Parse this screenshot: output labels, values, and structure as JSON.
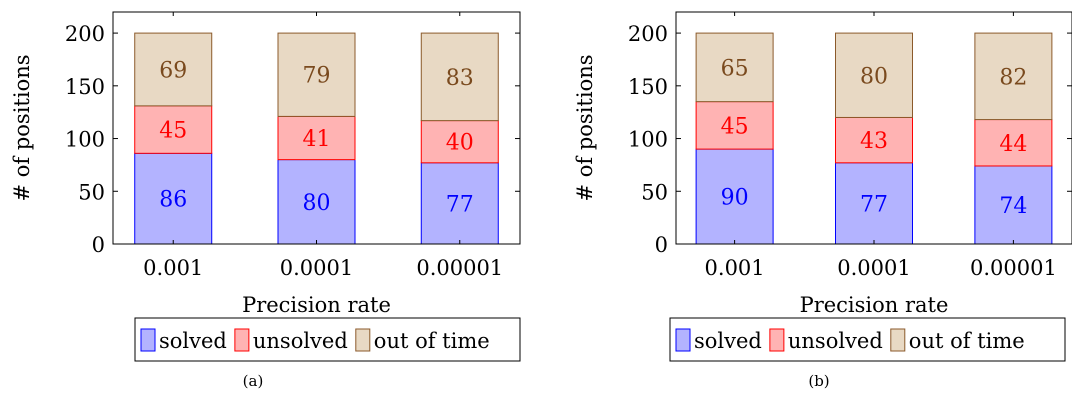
{
  "chart_data": [
    {
      "type": "bar",
      "stacked": true,
      "categories": [
        "0.001",
        "0.0001",
        "0.00001"
      ],
      "series": [
        {
          "name": "solved",
          "values": [
            86,
            80,
            77
          ],
          "fill": "#b3b3ff",
          "stroke": "#0000ff",
          "label_color": "#0000ff"
        },
        {
          "name": "unsolved",
          "values": [
            45,
            41,
            40
          ],
          "fill": "#ffb3b3",
          "stroke": "#ff0000",
          "label_color": "#ff0000"
        },
        {
          "name": "out of time",
          "values": [
            69,
            79,
            83
          ],
          "fill": "#e8d9c4",
          "stroke": "#8b5a2b",
          "label_color": "#7a4a1e"
        }
      ],
      "xlabel": "Precision rate",
      "ylabel": "# of positions",
      "ylim": [
        0,
        220
      ],
      "yticks": [
        0,
        50,
        100,
        150,
        200
      ],
      "legend_position": "bottom",
      "caption": "(a)"
    },
    {
      "type": "bar",
      "stacked": true,
      "categories": [
        "0.001",
        "0.0001",
        "0.00001"
      ],
      "series": [
        {
          "name": "solved",
          "values": [
            90,
            77,
            74
          ],
          "fill": "#b3b3ff",
          "stroke": "#0000ff",
          "label_color": "#0000ff"
        },
        {
          "name": "unsolved",
          "values": [
            45,
            43,
            44
          ],
          "fill": "#ffb3b3",
          "stroke": "#ff0000",
          "label_color": "#ff0000"
        },
        {
          "name": "out of time",
          "values": [
            65,
            80,
            82
          ],
          "fill": "#e8d9c4",
          "stroke": "#8b5a2b",
          "label_color": "#7a4a1e"
        }
      ],
      "xlabel": "Precision rate",
      "ylabel": "# of positions",
      "ylim": [
        0,
        220
      ],
      "yticks": [
        0,
        50,
        100,
        150,
        200
      ],
      "legend_position": "bottom",
      "caption": "(b)"
    }
  ]
}
